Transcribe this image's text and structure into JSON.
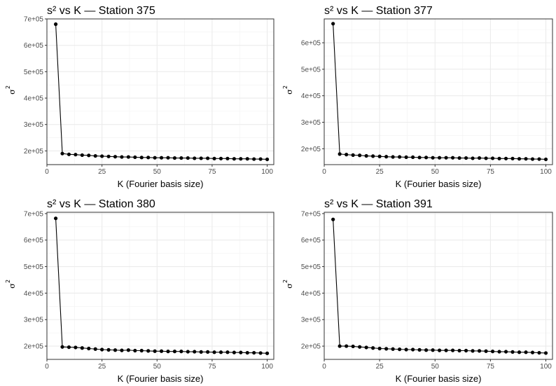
{
  "chart_data": [
    {
      "type": "line",
      "title": "s² vs K — Station 375",
      "xlabel": "K (Fourier basis size)",
      "ylabel": "σ",
      "ylabel_exponent": "2",
      "xlim": [
        0,
        103
      ],
      "ylim": [
        148000,
        700000
      ],
      "x_ticks": [
        0,
        25,
        50,
        75,
        100
      ],
      "x_tick_labels": [
        "0",
        "25",
        "50",
        "75",
        "100"
      ],
      "y_ticks": [
        200000,
        300000,
        400000,
        500000,
        600000,
        700000
      ],
      "y_tick_labels": [
        "2e+05",
        "3e+05",
        "4e+05",
        "5e+05",
        "6e+05",
        "7e+05"
      ],
      "grid": true,
      "series": [
        {
          "x": [
            4,
            7,
            10,
            13,
            16,
            19,
            22,
            25,
            28,
            31,
            34,
            37,
            40,
            43,
            46,
            49,
            52,
            55,
            58,
            61,
            64,
            67,
            70,
            73,
            76,
            79,
            82,
            85,
            88,
            91,
            94,
            97,
            100
          ],
          "y": [
            680000,
            190000,
            187000,
            186000,
            184000,
            183000,
            181000,
            180000,
            179000,
            178000,
            177000,
            177000,
            176000,
            175000,
            175000,
            174000,
            174000,
            174000,
            173000,
            173000,
            173000,
            172000,
            172000,
            172000,
            171000,
            171000,
            171000,
            170000,
            170000,
            170000,
            169000,
            169000,
            168000
          ]
        }
      ]
    },
    {
      "type": "line",
      "title": "s² vs K — Station 377",
      "xlabel": "K (Fourier basis size)",
      "ylabel": "σ",
      "ylabel_exponent": "2",
      "xlim": [
        0,
        103
      ],
      "ylim": [
        140000,
        690000
      ],
      "x_ticks": [
        0,
        25,
        50,
        75,
        100
      ],
      "x_tick_labels": [
        "0",
        "25",
        "50",
        "75",
        "100"
      ],
      "y_ticks": [
        200000,
        300000,
        400000,
        500000,
        600000
      ],
      "y_tick_labels": [
        "2e+05",
        "3e+05",
        "4e+05",
        "5e+05",
        "6e+05"
      ],
      "grid": true,
      "series": [
        {
          "x": [
            4,
            7,
            10,
            13,
            16,
            19,
            22,
            25,
            28,
            31,
            34,
            37,
            40,
            43,
            46,
            49,
            52,
            55,
            58,
            61,
            64,
            67,
            70,
            73,
            76,
            79,
            82,
            85,
            88,
            91,
            94,
            97,
            100
          ],
          "y": [
            672000,
            180000,
            178000,
            176000,
            175000,
            173000,
            172000,
            171000,
            170000,
            169000,
            169000,
            168000,
            168000,
            167000,
            167000,
            166000,
            166000,
            166000,
            166000,
            165000,
            165000,
            164000,
            165000,
            164000,
            164000,
            163000,
            163000,
            163000,
            162000,
            162000,
            161000,
            161000,
            160000
          ]
        }
      ]
    },
    {
      "type": "line",
      "title": "s² vs K — Station 380",
      "xlabel": "K (Fourier basis size)",
      "ylabel": "σ",
      "ylabel_exponent": "2",
      "xlim": [
        0,
        103
      ],
      "ylim": [
        150000,
        705000
      ],
      "x_ticks": [
        0,
        25,
        50,
        75,
        100
      ],
      "x_tick_labels": [
        "0",
        "25",
        "50",
        "75",
        "100"
      ],
      "y_ticks": [
        200000,
        300000,
        400000,
        500000,
        600000,
        700000
      ],
      "y_tick_labels": [
        "2e+05",
        "3e+05",
        "4e+05",
        "5e+05",
        "6e+05",
        "7e+05"
      ],
      "grid": true,
      "series": [
        {
          "x": [
            4,
            7,
            10,
            13,
            16,
            19,
            22,
            25,
            28,
            31,
            34,
            37,
            40,
            43,
            46,
            49,
            52,
            55,
            58,
            61,
            64,
            67,
            70,
            73,
            76,
            79,
            82,
            85,
            88,
            91,
            94,
            97,
            100
          ],
          "y": [
            682000,
            197000,
            196000,
            195000,
            193000,
            191000,
            189000,
            187000,
            186000,
            185000,
            184000,
            185000,
            183000,
            183000,
            182000,
            181000,
            181000,
            180000,
            180000,
            180000,
            179000,
            179000,
            178000,
            178000,
            177000,
            177000,
            177000,
            176000,
            176000,
            175000,
            175000,
            174000,
            173000
          ]
        }
      ]
    },
    {
      "type": "line",
      "title": "s² vs K — Station 391",
      "xlabel": "K (Fourier basis size)",
      "ylabel": "σ",
      "ylabel_exponent": "2",
      "xlim": [
        0,
        103
      ],
      "ylim": [
        150000,
        705000
      ],
      "x_ticks": [
        0,
        25,
        50,
        75,
        100
      ],
      "x_tick_labels": [
        "0",
        "25",
        "50",
        "75",
        "100"
      ],
      "y_ticks": [
        200000,
        300000,
        400000,
        500000,
        600000,
        700000
      ],
      "y_tick_labels": [
        "2e+05",
        "3e+05",
        "4e+05",
        "5e+05",
        "6e+05",
        "7e+05"
      ],
      "grid": true,
      "series": [
        {
          "x": [
            4,
            7,
            10,
            13,
            16,
            19,
            22,
            25,
            28,
            31,
            34,
            37,
            40,
            43,
            46,
            49,
            52,
            55,
            58,
            61,
            64,
            67,
            70,
            73,
            76,
            79,
            82,
            85,
            88,
            91,
            94,
            97,
            100
          ],
          "y": [
            678000,
            200000,
            200000,
            199000,
            197000,
            195000,
            193000,
            191000,
            190000,
            189000,
            188000,
            187000,
            187000,
            186000,
            185000,
            185000,
            184000,
            184000,
            184000,
            183000,
            183000,
            182000,
            182000,
            181000,
            180000,
            179000,
            179000,
            178000,
            177000,
            177000,
            176000,
            175000,
            174000
          ]
        }
      ]
    }
  ]
}
